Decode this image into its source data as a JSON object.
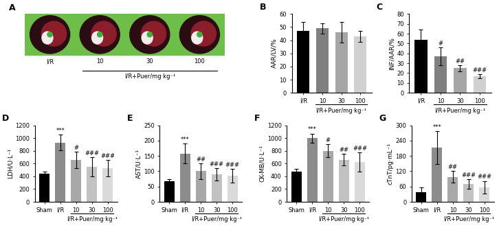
{
  "panel_a": {
    "title": "A",
    "image_labels": [
      "I/R",
      "10",
      "30",
      "100"
    ],
    "xlabel": "I/R+Puer/mg·kg⁻¹"
  },
  "chart_data": [
    {
      "type": "bar",
      "title": "B",
      "ylabel": "AAR/LV/%",
      "xlabel": "I/R+Puer/mg·kg⁻¹",
      "categories": [
        "I/R",
        "10",
        "30",
        "100"
      ],
      "values": [
        47,
        49,
        46,
        43
      ],
      "errors": [
        7,
        4,
        8,
        4
      ],
      "annotations": [
        null,
        null,
        null,
        null
      ],
      "colors": [
        "#000000",
        "#808080",
        "#a6a6a6",
        "#d0d0d0"
      ],
      "ylim": [
        0,
        60
      ],
      "yticks": [
        0,
        10,
        20,
        30,
        40,
        50,
        60
      ]
    },
    {
      "type": "bar",
      "title": "C",
      "ylabel": "INF/AAR/%",
      "xlabel": "I/R+Puer/mg·kg⁻¹",
      "categories": [
        "I/R",
        "10",
        "30",
        "100"
      ],
      "values": [
        54,
        37,
        25,
        17
      ],
      "errors": [
        10,
        9,
        3,
        2
      ],
      "annotations": [
        null,
        "#",
        "##",
        "###"
      ],
      "colors": [
        "#000000",
        "#808080",
        "#a6a6a6",
        "#d0d0d0"
      ],
      "ylim": [
        0,
        80
      ],
      "yticks": [
        0,
        10,
        20,
        30,
        40,
        50,
        60,
        70,
        80
      ]
    },
    {
      "type": "bar",
      "title": "D",
      "ylabel": "LDH/U·L⁻¹",
      "xlabel": "I/R+Puer/mg·kg⁻¹",
      "categories": [
        "Sham",
        "I/R",
        "10",
        "30",
        "100"
      ],
      "values": [
        440,
        930,
        660,
        550,
        530
      ],
      "errors": [
        30,
        120,
        130,
        150,
        130
      ],
      "annotations": [
        null,
        "***",
        "#",
        "###",
        "###"
      ],
      "colors": [
        "#000000",
        "#8c8c8c",
        "#a8a8a8",
        "#c2c2c2",
        "#dadada"
      ],
      "ylim": [
        0,
        1200
      ],
      "yticks": [
        0,
        200,
        400,
        600,
        800,
        1000,
        1200
      ]
    },
    {
      "type": "bar",
      "title": "E",
      "ylabel": "AST/U·L⁻¹",
      "xlabel": "I/R+Puer/mg·kg⁻¹",
      "categories": [
        "Sham",
        "I/R",
        "10",
        "30",
        "100"
      ],
      "values": [
        68,
        158,
        100,
        90,
        85
      ],
      "errors": [
        7,
        32,
        25,
        20,
        22
      ],
      "annotations": [
        null,
        "***",
        "##",
        "###",
        "###"
      ],
      "colors": [
        "#000000",
        "#8c8c8c",
        "#a8a8a8",
        "#c2c2c2",
        "#dadada"
      ],
      "ylim": [
        0,
        250
      ],
      "yticks": [
        0,
        50,
        100,
        150,
        200,
        250
      ]
    },
    {
      "type": "bar",
      "title": "F",
      "ylabel": "CK-MB/U·L⁻¹",
      "xlabel": "I/R+Puer/mg·kg⁻¹",
      "categories": [
        "Sham",
        "I/R",
        "10",
        "30",
        "100"
      ],
      "values": [
        470,
        1000,
        800,
        660,
        620
      ],
      "errors": [
        50,
        70,
        100,
        90,
        150
      ],
      "annotations": [
        null,
        "***",
        "#",
        "##",
        "###"
      ],
      "colors": [
        "#000000",
        "#8c8c8c",
        "#a8a8a8",
        "#c2c2c2",
        "#dadada"
      ],
      "ylim": [
        0,
        1200
      ],
      "yticks": [
        0,
        200,
        400,
        600,
        800,
        1000,
        1200
      ]
    },
    {
      "type": "bar",
      "title": "G",
      "ylabel": "cTnT/pg·mL⁻¹",
      "xlabel": "I/R+Puer/mg·kg⁻¹",
      "categories": [
        "Sham",
        "I/R",
        "10",
        "30",
        "100"
      ],
      "values": [
        38,
        212,
        98,
        70,
        57
      ],
      "errors": [
        18,
        65,
        22,
        18,
        25
      ],
      "annotations": [
        null,
        "***",
        "##",
        "###",
        "###"
      ],
      "colors": [
        "#000000",
        "#8c8c8c",
        "#a8a8a8",
        "#c2c2c2",
        "#dadada"
      ],
      "ylim": [
        0,
        300
      ],
      "yticks": [
        0,
        60,
        120,
        180,
        240,
        300
      ]
    }
  ]
}
